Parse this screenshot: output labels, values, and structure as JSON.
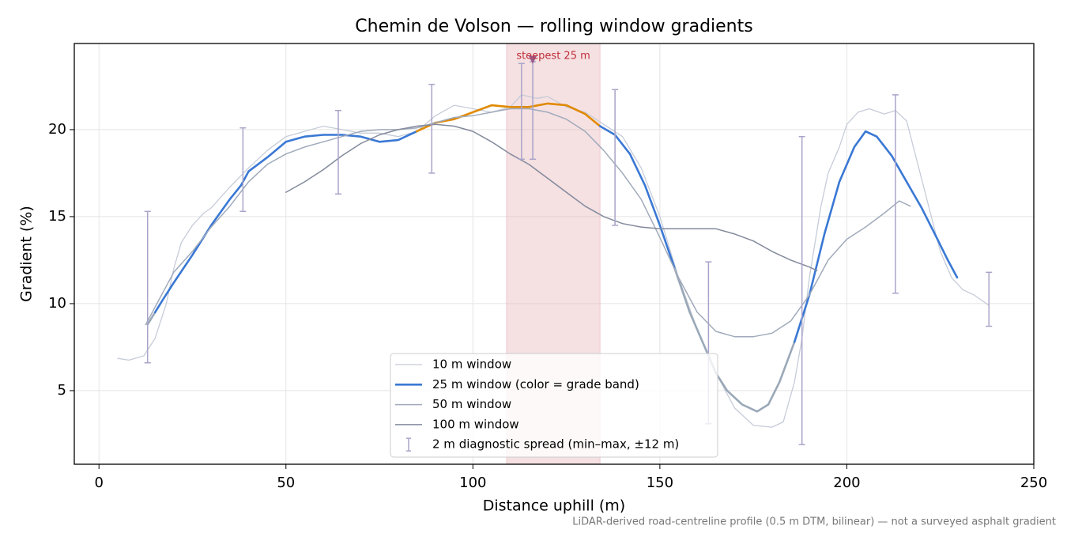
{
  "chart_data": {
    "type": "line",
    "title": "Chemin de Volson — rolling window gradients",
    "x_label": "Distance uphill (m)",
    "y_label": "Gradient (%)",
    "footnote": "LiDAR-derived road-centreline profile (0.5 m DTM, bilinear) — not a surveyed asphalt gradient",
    "xlim": [
      -6.6,
      250
    ],
    "ylim": [
      0.77,
      24.95
    ],
    "xticks": [
      0,
      50,
      100,
      150,
      200,
      250
    ],
    "yticks": [
      5,
      10,
      15,
      20
    ],
    "grid": true,
    "legend": "lower center",
    "highlight": {
      "label": "steepest 25 m",
      "x": [
        109,
        134
      ],
      "color": "#e8b4b9",
      "marker_x": 116,
      "marker_y": 24,
      "marker_color": "#9a5a8a",
      "label_color": "#c0303a"
    },
    "series": [
      {
        "name": "10 m window",
        "color": "#c6ccd8",
        "width": 1.3,
        "x": [
          5,
          8,
          12,
          15,
          18,
          20,
          22,
          25,
          28,
          30,
          35,
          40,
          45,
          50,
          55,
          60,
          65,
          70,
          75,
          80,
          85,
          90,
          95,
          100,
          105,
          110,
          113,
          117,
          120,
          125,
          130,
          135,
          140,
          145,
          150,
          155,
          160,
          165,
          170,
          175,
          180,
          183,
          186,
          188,
          190,
          193,
          195,
          198,
          200,
          203,
          206,
          210,
          213,
          216,
          219,
          222,
          225,
          228,
          231,
          234,
          238
        ],
        "values": [
          6.85,
          6.75,
          7.0,
          8.0,
          10.0,
          12.0,
          13.5,
          14.5,
          15.2,
          15.5,
          16.7,
          17.8,
          18.8,
          19.6,
          19.9,
          20.2,
          20.0,
          19.8,
          19.8,
          19.6,
          19.9,
          20.8,
          21.4,
          21.2,
          21.0,
          21.3,
          22.0,
          21.8,
          21.9,
          21.3,
          21.0,
          20.3,
          19.6,
          17.8,
          15.0,
          11.5,
          8.5,
          6.0,
          4.0,
          3.0,
          2.9,
          3.2,
          5.5,
          8.0,
          11.5,
          15.5,
          17.5,
          19.0,
          20.3,
          21.0,
          21.2,
          20.9,
          21.1,
          20.5,
          18.0,
          15.5,
          13.0,
          11.5,
          10.8,
          10.5,
          9.9
        ]
      },
      {
        "name": "25 m window (color = grade band)",
        "color": "#3a78d4",
        "width": 2.6,
        "grade_bands": [
          {
            "below": 10,
            "color": "#9aa8b8"
          },
          {
            "above": 20,
            "color": "#e08a00"
          }
        ],
        "x": [
          13,
          15,
          17,
          20,
          25,
          30,
          35,
          38,
          40,
          45,
          50,
          55,
          60,
          65,
          70,
          75,
          80,
          85,
          90,
          95,
          100,
          105,
          110,
          115,
          120,
          125,
          130,
          134,
          138,
          142,
          146,
          150,
          154,
          158,
          162,
          165,
          168,
          172,
          176,
          179,
          182,
          186,
          190,
          194,
          198,
          202,
          205,
          208,
          212,
          216,
          220,
          224,
          227,
          229.5
        ],
        "values": [
          8.8,
          9.5,
          10.2,
          11.2,
          12.8,
          14.5,
          16.0,
          16.8,
          17.6,
          18.4,
          19.3,
          19.6,
          19.7,
          19.7,
          19.6,
          19.3,
          19.4,
          19.9,
          20.4,
          20.6,
          21.0,
          21.4,
          21.3,
          21.3,
          21.5,
          21.4,
          20.9,
          20.2,
          19.7,
          18.6,
          16.8,
          14.5,
          12.0,
          9.5,
          7.5,
          6.0,
          5.0,
          4.2,
          3.8,
          4.2,
          5.5,
          7.8,
          10.5,
          14.0,
          17.0,
          19.0,
          19.9,
          19.6,
          18.5,
          17.0,
          15.5,
          13.8,
          12.5,
          11.5
        ]
      },
      {
        "name": "50 m window",
        "color": "#a0aabb",
        "width": 1.5,
        "x": [
          12.5,
          15,
          20,
          25,
          30,
          35,
          40,
          45,
          50,
          55,
          60,
          65,
          70,
          75,
          80,
          85,
          90,
          95,
          100,
          105,
          110,
          115,
          120,
          125,
          130,
          135,
          140,
          145,
          150,
          155,
          160,
          165,
          170,
          175,
          180,
          185,
          190,
          195,
          200,
          205,
          210,
          214,
          217
        ],
        "values": [
          8.8,
          9.8,
          11.8,
          13.0,
          14.4,
          15.6,
          17.0,
          18.0,
          18.6,
          19.0,
          19.3,
          19.6,
          19.9,
          20.0,
          20.0,
          20.1,
          20.4,
          20.7,
          20.8,
          21.0,
          21.2,
          21.2,
          21.0,
          20.6,
          19.9,
          18.8,
          17.5,
          16.0,
          13.8,
          11.5,
          9.5,
          8.4,
          8.1,
          8.1,
          8.3,
          9.0,
          10.5,
          12.5,
          13.7,
          14.4,
          15.2,
          15.9,
          15.6
        ]
      },
      {
        "name": "100 m window",
        "color": "#828a9c",
        "width": 1.5,
        "x": [
          50,
          55,
          60,
          65,
          70,
          75,
          80,
          85,
          90,
          95,
          100,
          105,
          110,
          115,
          120,
          125,
          130,
          135,
          140,
          145,
          150,
          155,
          160,
          165,
          170,
          175,
          180,
          185,
          190,
          192
        ],
        "values": [
          16.4,
          17.0,
          17.7,
          18.5,
          19.2,
          19.7,
          20.0,
          20.2,
          20.3,
          20.2,
          19.9,
          19.3,
          18.6,
          18.0,
          17.2,
          16.4,
          15.6,
          15.0,
          14.6,
          14.4,
          14.3,
          14.3,
          14.3,
          14.3,
          14.0,
          13.6,
          13.0,
          12.5,
          12.1,
          11.9
        ]
      }
    ],
    "error_bars": {
      "name": "2 m diagnostic spread (min–max, ±12 m)",
      "color": "#a9a4c9",
      "x": [
        13,
        38.5,
        64,
        89,
        113,
        116,
        138,
        163,
        188,
        213,
        238
      ],
      "low": [
        6.6,
        15.3,
        16.3,
        17.5,
        18.3,
        18.3,
        14.5,
        3.1,
        1.9,
        10.6,
        8.7
      ],
      "high": [
        15.3,
        20.1,
        21.1,
        22.6,
        23.8,
        23.9,
        22.3,
        12.4,
        19.6,
        22.0,
        11.8
      ]
    }
  }
}
